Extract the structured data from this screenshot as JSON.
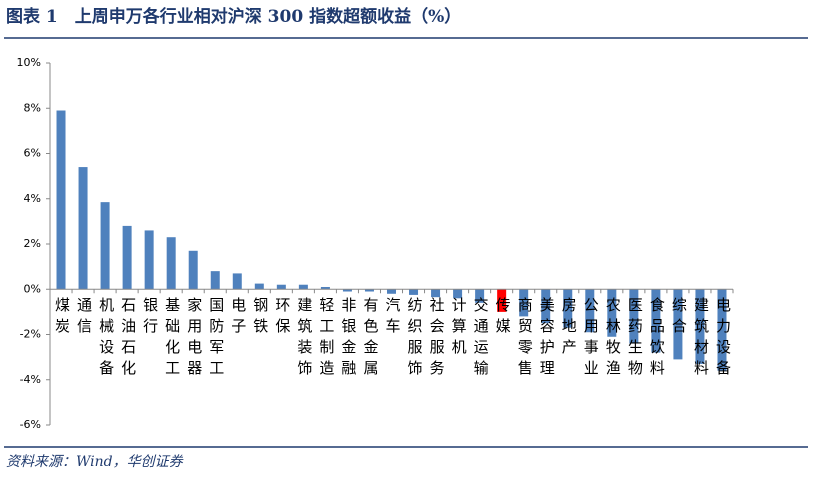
{
  "chart_data": {
    "type": "bar",
    "title": "图表 1　上周申万各行业相对沪深 300 指数超额收益（%）",
    "source": "资料来源：Wind，华创证券",
    "categories": [
      "煤炭",
      "通信",
      "机械设备",
      "石油石化",
      "银行",
      "基础化工",
      "家用电器",
      "国防军工",
      "电子",
      "钢铁",
      "环保",
      "建筑装饰",
      "轻工制造",
      "非银金融",
      "有色金属",
      "汽车",
      "纺织服饰",
      "社会服务",
      "计算机",
      "交通运输",
      "传媒",
      "商贸零售",
      "美容护理",
      "房地产",
      "公用事业",
      "农林牧渔",
      "医药生物",
      "食品饮料",
      "综合",
      "建筑材料",
      "电力设备"
    ],
    "values": [
      7.9,
      5.4,
      3.85,
      2.8,
      2.6,
      2.3,
      1.7,
      0.8,
      0.7,
      0.25,
      0.2,
      0.2,
      0.1,
      -0.1,
      -0.1,
      -0.2,
      -0.25,
      -0.35,
      -0.4,
      -0.6,
      -1.0,
      -1.2,
      -1.5,
      -1.7,
      -1.9,
      -2.1,
      -2.4,
      -2.8,
      -3.1,
      -3.3,
      -3.6
    ],
    "colors": [
      "#4f81bd",
      "#4f81bd",
      "#4f81bd",
      "#4f81bd",
      "#4f81bd",
      "#4f81bd",
      "#4f81bd",
      "#4f81bd",
      "#4f81bd",
      "#4f81bd",
      "#4f81bd",
      "#4f81bd",
      "#4f81bd",
      "#4f81bd",
      "#4f81bd",
      "#4f81bd",
      "#4f81bd",
      "#4f81bd",
      "#4f81bd",
      "#4f81bd",
      "#ff0000",
      "#4f81bd",
      "#4f81bd",
      "#4f81bd",
      "#4f81bd",
      "#4f81bd",
      "#4f81bd",
      "#4f81bd",
      "#4f81bd",
      "#4f81bd",
      "#4f81bd"
    ],
    "ylim": [
      -6,
      10
    ],
    "yticks": [
      {
        "value": -6,
        "label": "-6%"
      },
      {
        "value": -4,
        "label": "-4%"
      },
      {
        "value": -2,
        "label": "-2%"
      },
      {
        "value": 0,
        "label": "0%"
      },
      {
        "value": 2,
        "label": "2%"
      },
      {
        "value": 4,
        "label": "4%"
      },
      {
        "value": 6,
        "label": "6%"
      },
      {
        "value": 8,
        "label": "8%"
      },
      {
        "value": 10,
        "label": "10%"
      }
    ],
    "grid": false
  }
}
